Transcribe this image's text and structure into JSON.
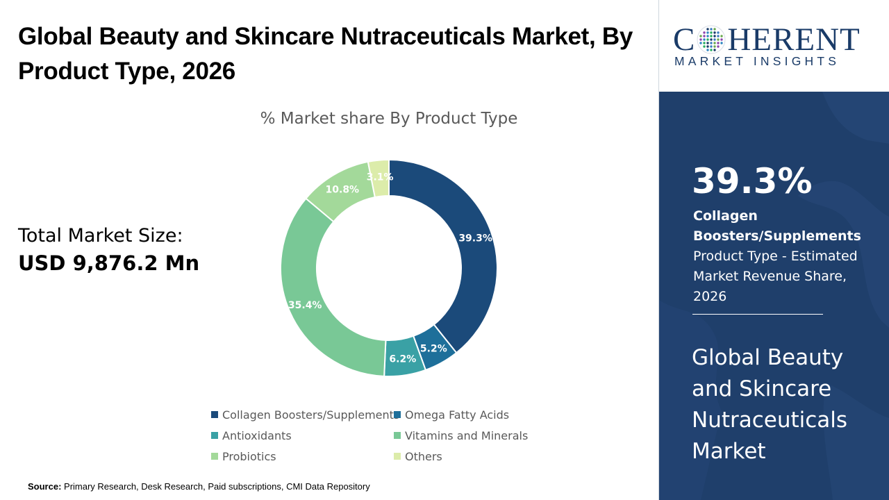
{
  "page": {
    "title": "Global Beauty and Skincare Nutraceuticals Market, By Product Type, 2026",
    "market_size_label": "Total Market Size:",
    "market_size_value": "USD 9,876.2 Mn",
    "source_label": "Source:",
    "source_text": " Primary Research, Desk Research, Paid subscriptions, CMI Data Repository"
  },
  "logo": {
    "pre": "C",
    "post": "HERENT",
    "sub": "MARKET INSIGHTS"
  },
  "highlight": {
    "value": "39.3%",
    "segment": "Collagen Boosters/Supplements",
    "description": "Product Type - Estimated Market Revenue Share, 2026",
    "market_name": "Global Beauty and Skincare Nutraceuticals Market"
  },
  "colors": {
    "panel": "#1f3f6b",
    "brand": "#1a3b68"
  },
  "chart_data": {
    "type": "pie",
    "variant": "donut",
    "title": "% Market share By Product Type",
    "legend_position": "bottom",
    "categories": [
      "Collagen Boosters/Supplements",
      "Omega Fatty Acids",
      "Antioxidants",
      "Vitamins and Minerals",
      "Probiotics",
      "Others"
    ],
    "values": [
      39.3,
      5.2,
      6.2,
      35.4,
      10.8,
      3.1
    ],
    "labels": [
      "39.3%",
      "5.2%",
      "6.2%",
      "35.4%",
      "10.8%",
      "3.1%"
    ],
    "colors": [
      "#1b4a7a",
      "#1e6f9a",
      "#3aa1a5",
      "#79c896",
      "#a3d99a",
      "#dcecaa"
    ]
  }
}
